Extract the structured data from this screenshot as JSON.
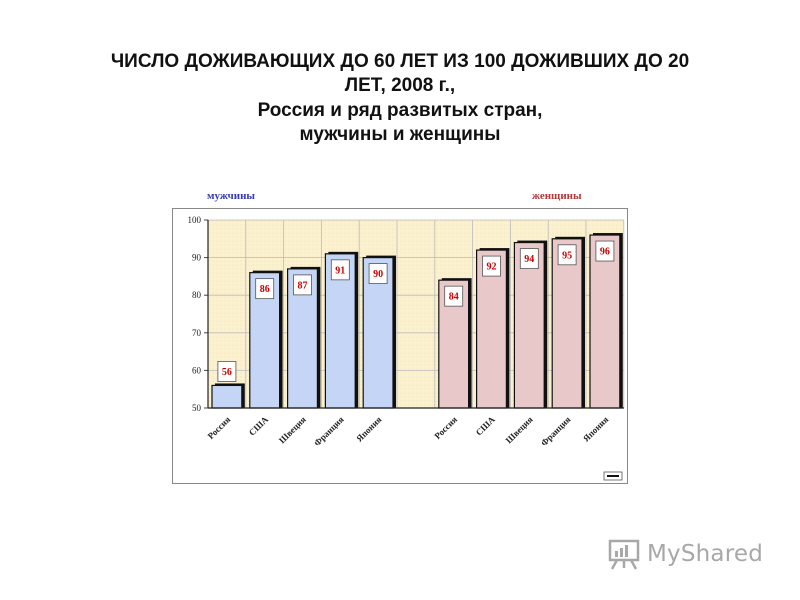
{
  "title": {
    "line1": "ЧИСЛО ДОЖИВАЮЩИХ ДО 60 ЛЕТ ИЗ 100 ДОЖИВШИХ ДО 20",
    "line2": "ЛЕТ, 2008 г.,",
    "line3": "Россия и ряд развитых стран,",
    "line4": "мужчины и женщины"
  },
  "colors": {
    "men_bar": "#c5d5f5",
    "women_bar": "#e8c8c8",
    "men_label": "#3a3ab0",
    "women_label": "#b03a3a",
    "plot_bg": "#fbf1cf",
    "value_text": "#cc0000"
  },
  "chart_data": {
    "type": "bar",
    "groups": [
      {
        "name": "мужчины",
        "categories": [
          "Россия",
          "США",
          "Швеция",
          "Франция",
          "Япония"
        ],
        "values": [
          56,
          86,
          87,
          91,
          90
        ]
      },
      {
        "name": "женщины",
        "categories": [
          "Россия",
          "США",
          "Швеция",
          "Франция",
          "Япония"
        ],
        "values": [
          84,
          92,
          94,
          95,
          96
        ]
      }
    ],
    "ylim": [
      50,
      100
    ],
    "yticks": [
      50,
      60,
      70,
      80,
      90,
      100
    ],
    "grid": true
  },
  "watermark": {
    "text": "MyShared",
    "icon": "easel-chart-icon"
  }
}
